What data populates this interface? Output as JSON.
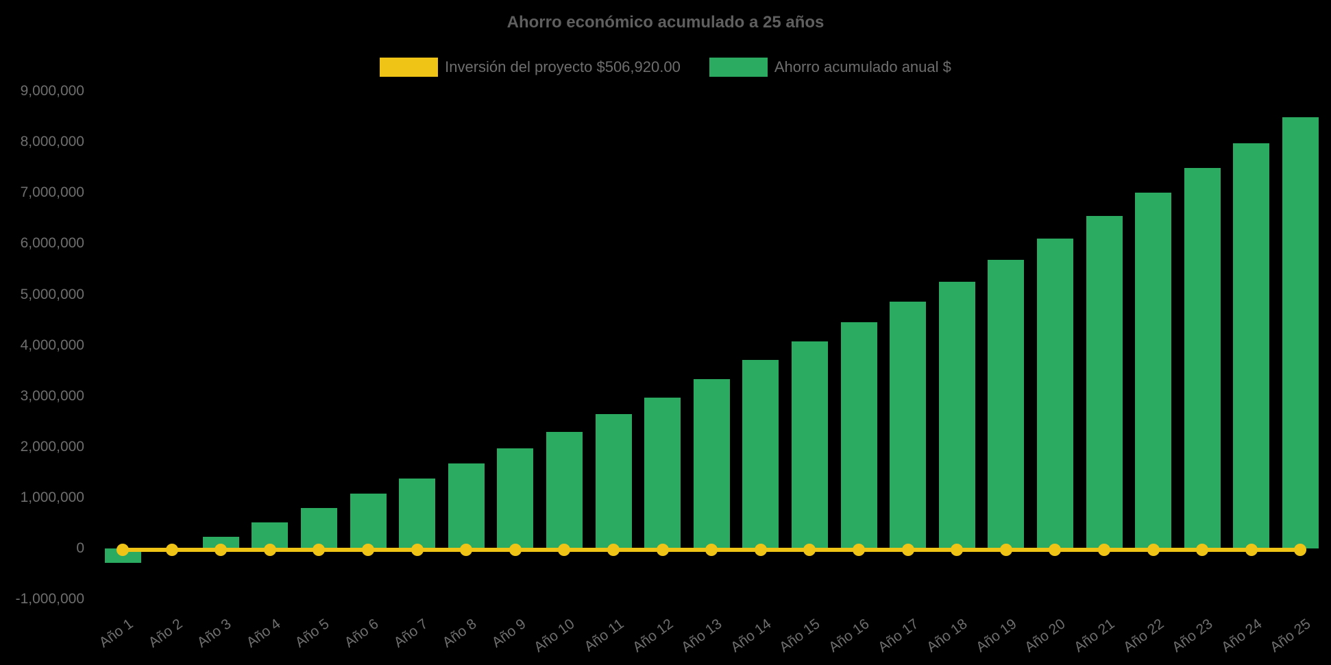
{
  "title": "Ahorro económico acumulado a 25 años",
  "colors": {
    "background": "#000000",
    "bar_green": "#2bab62",
    "line_yellow": "#f0c417",
    "text_gray": "#6e6e6e",
    "title_gray": "#5f5f5f"
  },
  "legend": {
    "position": "top",
    "items": [
      {
        "label": "Inversión del proyecto $506,920.00",
        "color": "#f0c417",
        "series_type": "line"
      },
      {
        "label": "Ahorro acumulado anual $",
        "color": "#2bab62",
        "series_type": "bar"
      }
    ]
  },
  "chart_data": {
    "type": "bar",
    "title": "Ahorro económico acumulado a 25 años",
    "xlabel": "",
    "ylabel": "",
    "grid": false,
    "legend_position": "top",
    "categories": [
      "Año 1",
      "Año 2",
      "Año 3",
      "Año 4",
      "Año 5",
      "Año 6",
      "Año 7",
      "Año 8",
      "Año 9",
      "Año 10",
      "Año 11",
      "Año 12",
      "Año 13",
      "Año 14",
      "Año 15",
      "Año 16",
      "Año 17",
      "Año 18",
      "Año 19",
      "Año 20",
      "Año 21",
      "Año 22",
      "Año 23",
      "Año 24",
      "Año 25"
    ],
    "series": [
      {
        "name": "Ahorro acumulado anual $",
        "type": "bar",
        "color": "#2bab62",
        "values": [
          -280000,
          -30000,
          225000,
          510000,
          795000,
          1075000,
          1370000,
          1680000,
          1970000,
          2300000,
          2640000,
          2975000,
          3335000,
          3705000,
          4070000,
          4460000,
          4855000,
          5255000,
          5675000,
          6105000,
          6550000,
          7000000,
          7485000,
          7975000,
          8490000
        ]
      },
      {
        "name": "Inversión del proyecto $506,920.00",
        "type": "line",
        "color": "#f0c417",
        "marker": "circle",
        "investment_amount_label": "$506,920.00",
        "values": [
          0,
          0,
          0,
          0,
          0,
          0,
          0,
          0,
          0,
          0,
          0,
          0,
          0,
          0,
          0,
          0,
          0,
          0,
          0,
          0,
          0,
          0,
          0,
          0,
          0
        ]
      }
    ],
    "y_axis": {
      "min": -1000000,
      "max": 9000000,
      "tick_values": [
        9000000,
        8000000,
        7000000,
        6000000,
        5000000,
        4000000,
        3000000,
        2000000,
        1000000,
        0,
        -1000000
      ],
      "tick_labels": [
        "9,000,000",
        "8,000,000",
        "7,000,000",
        "6,000,000",
        "5,000,000",
        "4,000,000",
        "3,000,000",
        "2,000,000",
        "1,000,000",
        "0",
        "-1,000,000"
      ]
    }
  }
}
